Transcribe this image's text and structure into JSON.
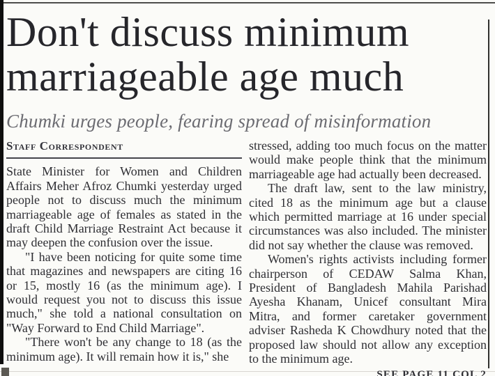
{
  "article": {
    "headline_lines": [
      "Don't discuss minimum",
      "marriageable age much"
    ],
    "subheadline": "Chumki urges people, fearing spread of misinformation",
    "byline": "Staff Correspondent",
    "left_column": {
      "paragraphs": [
        "State Minister for Women and Children Affairs Meher Afroz Chumki yesterday urged people not to discuss much the minimum marriageable age of females as stated in the draft Child Marriage Restraint Act because it may deepen the confusion over the issue.",
        "\"I have been noticing for quite some time that magazines and newspapers are citing 16 or 15, mostly 16 (as the minimum age). I would request you not to discuss this issue much,\" she told a national consultation on \"Way Forward to End Child Marriage\".",
        "\"There won't be any change to 18 (as the minimum age). It will remain how it is,\" she"
      ]
    },
    "right_column": {
      "paragraphs": [
        "stressed, adding too much focus on the matter would make people think that the minimum marriageable age had actually been decreased.",
        "The draft law, sent to the law ministry, cited 18 as the minimum age but a clause which permitted marriage at 16 under special circumstances was also included. The minister did not say whether the clause was removed.",
        "Women's rights activists including former chairperson of CEDAW Salma Khan, President of Bangladesh Mahila Parishad Ayesha Khanam, Unicef consultant Mira Mitra, and former caretaker government adviser Rasheda K Chowdhury noted that the proposed law should not allow any exception to the minimum age."
      ],
      "continuation": "SEE PAGE 11 COL 2"
    }
  },
  "colors": {
    "headline": "#26262b",
    "subheadline": "#6b6b71",
    "body_text": "#2e2e33",
    "rules_and_bars": "#0e0e0e",
    "background": "#fbfbf8"
  }
}
